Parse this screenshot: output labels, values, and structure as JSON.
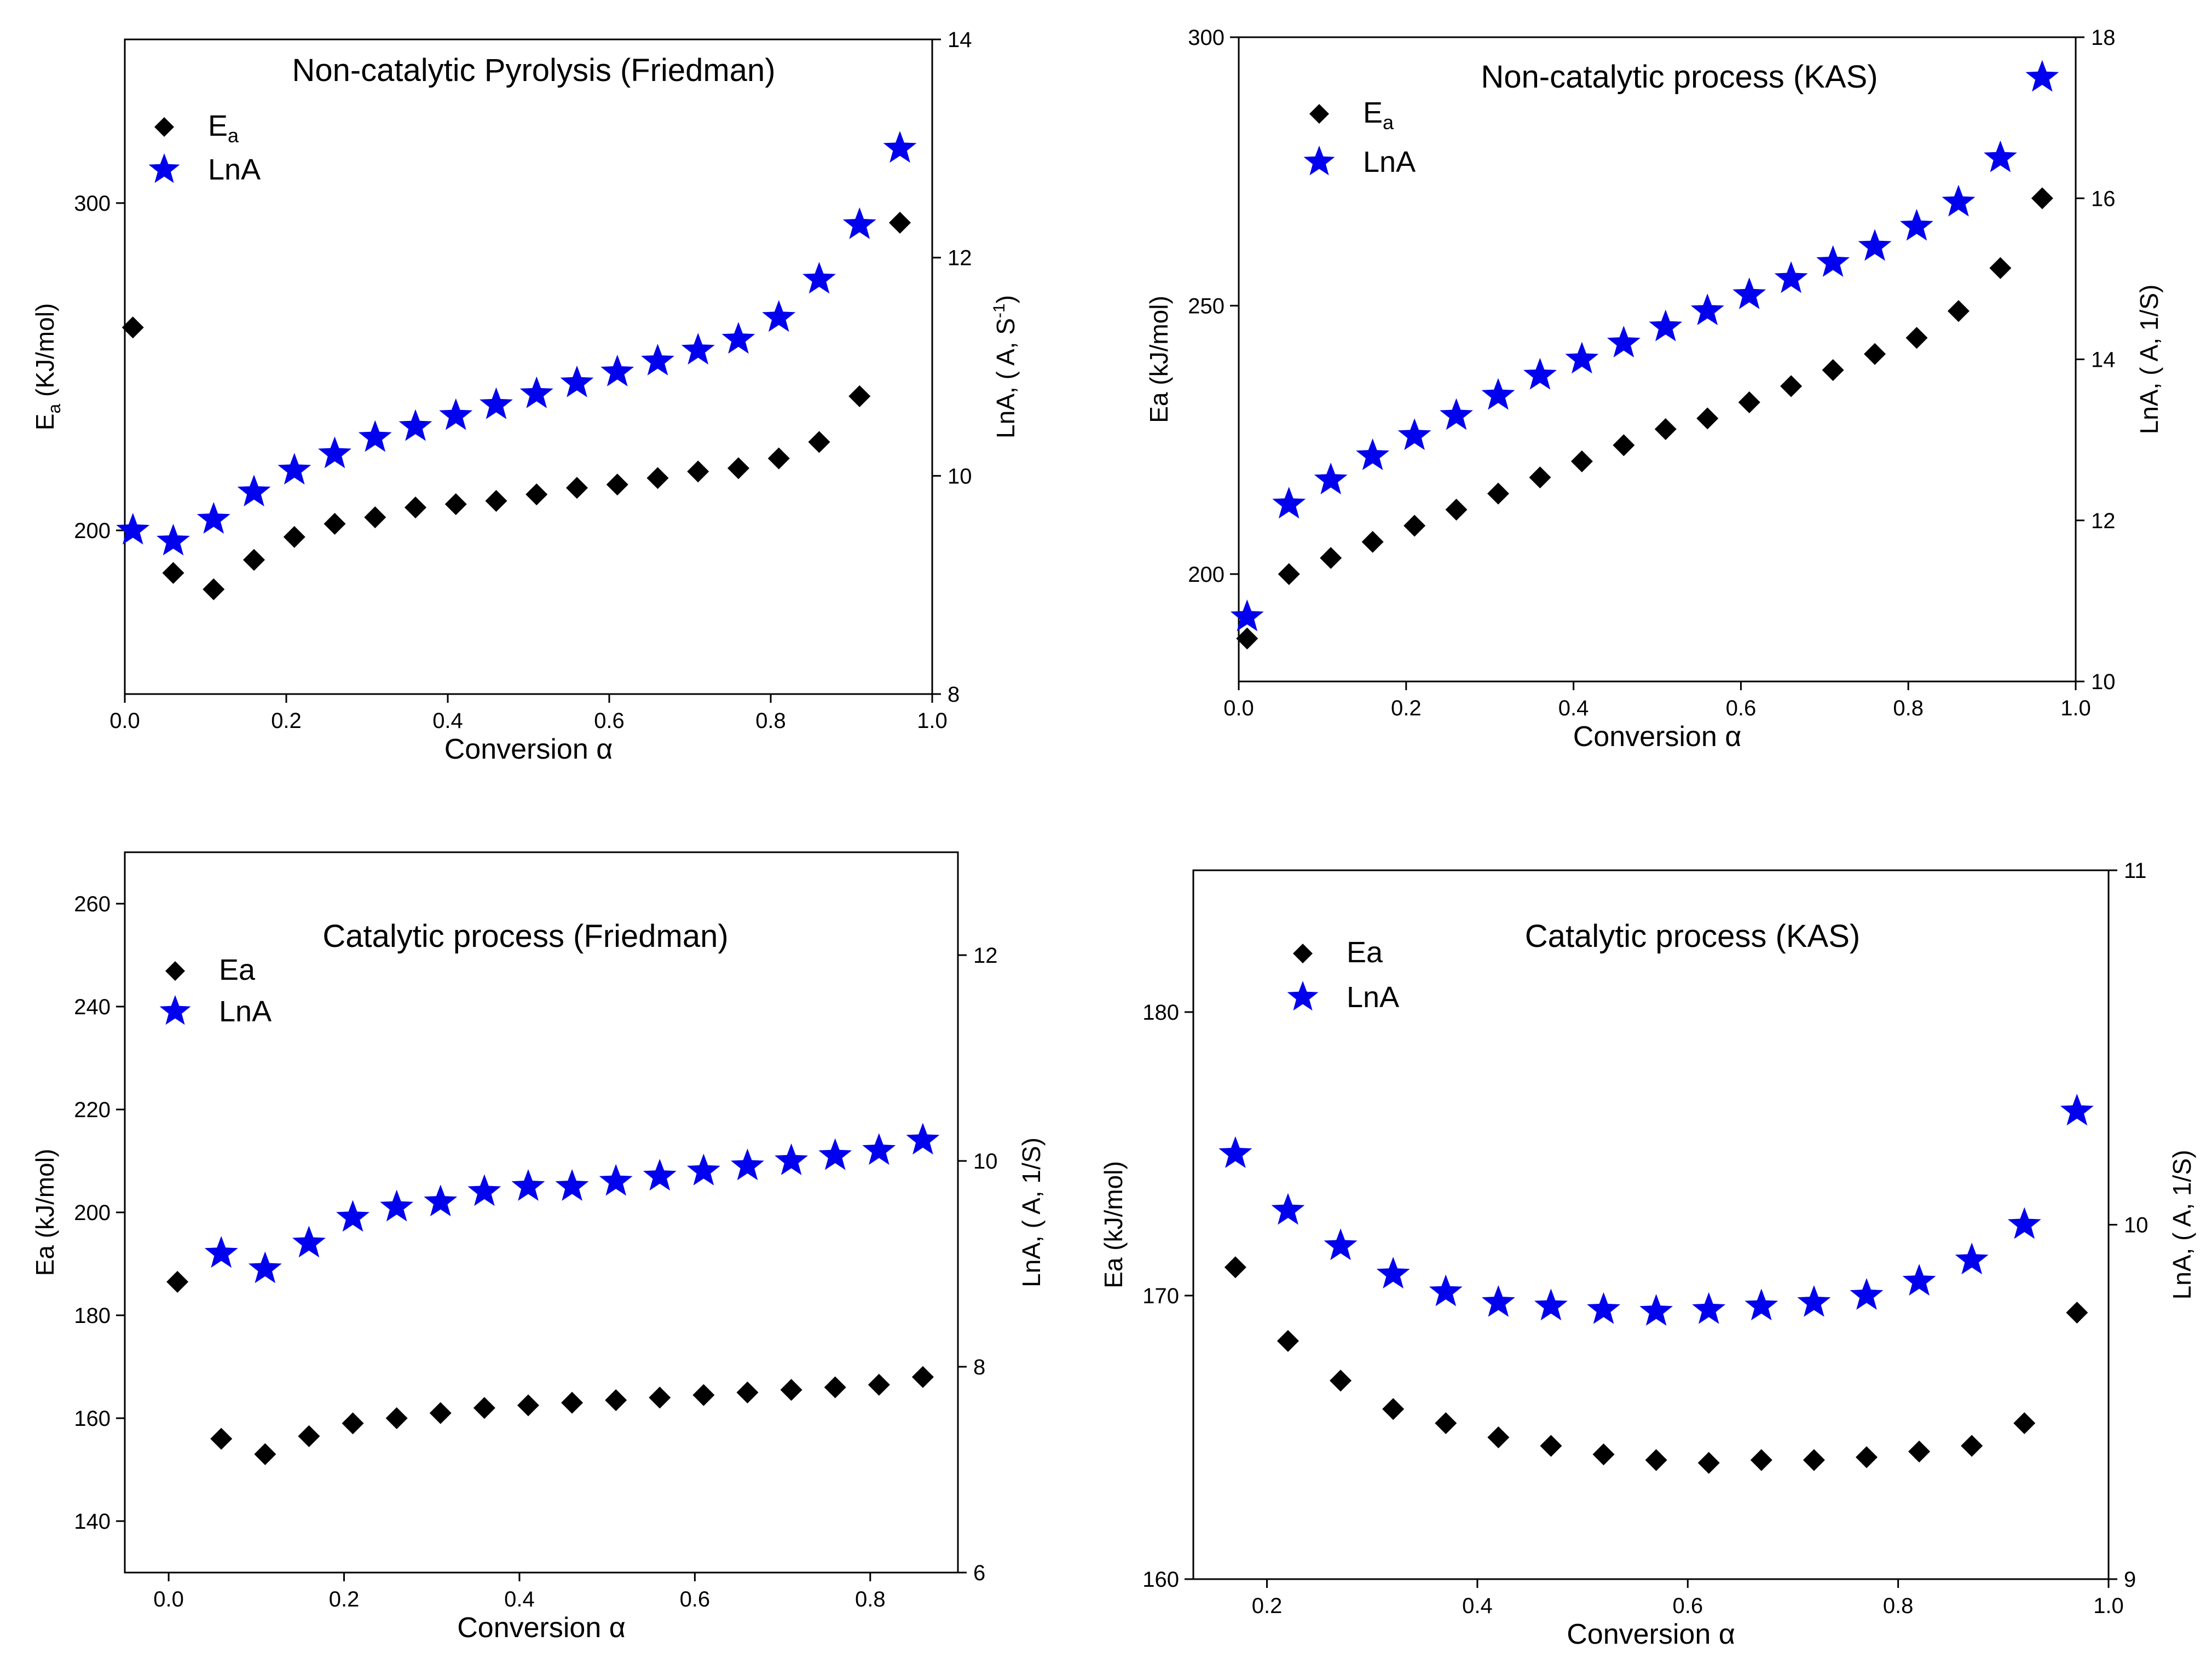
{
  "colors": {
    "ea": "#000000",
    "lna": "#0000ee",
    "axis": "#000000"
  },
  "chart_data": [
    {
      "type": "scatter",
      "title": "Non-catalytic Pyrolysis (Friedman)",
      "xlabel": "Conversion α",
      "ylabel_main": "E",
      "ylabel_sub": "a",
      "ylabel_tail": " (KJ/mol)",
      "y2label": "LnA, ( A, S",
      "y2label_sup": "-1",
      "y2label_tail": ")",
      "legend": {
        "ea_main": "E",
        "ea_sub": "a",
        "lna": "LnA"
      },
      "xlim": [
        0.0,
        1.0
      ],
      "ylim": [
        150,
        350
      ],
      "y2lim": [
        8,
        14
      ],
      "xticks": [
        "0.0",
        "0.2",
        "0.4",
        "0.6",
        "0.8",
        "1.0"
      ],
      "yticks": [
        "200",
        "300"
      ],
      "y2ticks": [
        "8",
        "10",
        "12",
        "14"
      ],
      "x": [
        0.01,
        0.06,
        0.11,
        0.16,
        0.21,
        0.26,
        0.31,
        0.36,
        0.41,
        0.46,
        0.51,
        0.56,
        0.61,
        0.66,
        0.71,
        0.76,
        0.81,
        0.86,
        0.91,
        0.96
      ],
      "ea": [
        262,
        187,
        182,
        191,
        198,
        202,
        204,
        207,
        208,
        209,
        211,
        213,
        214,
        216,
        218,
        219,
        222,
        227,
        241,
        294
      ],
      "lna": [
        9.5,
        9.4,
        9.6,
        9.85,
        10.05,
        10.2,
        10.35,
        10.45,
        10.55,
        10.65,
        10.75,
        10.85,
        10.95,
        11.05,
        11.15,
        11.25,
        11.45,
        11.8,
        12.3,
        13.0
      ]
    },
    {
      "type": "scatter",
      "title": "Non-catalytic process (KAS)",
      "xlabel": "Conversion α",
      "ylabel_main": "Ea (kJ/mol)",
      "ylabel_sub": "",
      "ylabel_tail": "",
      "y2label": "LnA, ( A, 1/S)",
      "y2label_sup": "",
      "y2label_tail": "",
      "legend": {
        "ea_main": "E",
        "ea_sub": "a",
        "lna": "LnA"
      },
      "xlim": [
        0.0,
        1.0
      ],
      "ylim": [
        180,
        300
      ],
      "y2lim": [
        10,
        18
      ],
      "xticks": [
        "0.0",
        "0.2",
        "0.4",
        "0.6",
        "0.8",
        "1.0"
      ],
      "yticks": [
        "200",
        "250",
        "300"
      ],
      "y2ticks": [
        "10",
        "12",
        "14",
        "16",
        "18"
      ],
      "x": [
        0.01,
        0.06,
        0.11,
        0.16,
        0.21,
        0.26,
        0.31,
        0.36,
        0.41,
        0.46,
        0.51,
        0.56,
        0.61,
        0.66,
        0.71,
        0.76,
        0.81,
        0.86,
        0.91,
        0.96
      ],
      "ea": [
        188,
        200,
        203,
        206,
        209,
        212,
        215,
        218,
        221,
        224,
        227,
        229,
        232,
        235,
        238,
        241,
        244,
        249,
        257,
        270
      ],
      "lna": [
        10.8,
        12.2,
        12.5,
        12.8,
        13.05,
        13.3,
        13.55,
        13.8,
        14.0,
        14.2,
        14.4,
        14.6,
        14.8,
        15.0,
        15.2,
        15.4,
        15.65,
        15.95,
        16.5,
        17.5
      ]
    },
    {
      "type": "scatter",
      "title": "Catalytic process (Friedman)",
      "xlabel": "Conversion α",
      "ylabel_main": "Ea (kJ/mol)",
      "ylabel_sub": "",
      "ylabel_tail": "",
      "y2label": "LnA, ( A, 1/S)",
      "y2label_sup": "",
      "y2label_tail": "",
      "legend": {
        "ea_main": "Ea",
        "ea_sub": "",
        "lna": "LnA"
      },
      "xlim": [
        -0.05,
        0.9
      ],
      "ylim": [
        130,
        270
      ],
      "y2lim": [
        6,
        13
      ],
      "xticks": [
        "0.0",
        "0.2",
        "0.4",
        "0.6",
        "0.8"
      ],
      "yticks": [
        "140",
        "160",
        "180",
        "200",
        "220",
        "240",
        "260"
      ],
      "y2ticks": [
        "6",
        "8",
        "10",
        "12"
      ],
      "x": [
        0.01,
        0.06,
        0.11,
        0.16,
        0.21,
        0.26,
        0.31,
        0.36,
        0.41,
        0.46,
        0.51,
        0.56,
        0.61,
        0.66,
        0.71,
        0.76,
        0.81,
        0.86
      ],
      "ea": [
        186.5,
        156,
        153,
        156.5,
        159,
        160,
        161,
        162,
        162.5,
        163,
        163.5,
        164,
        164.5,
        165,
        165.5,
        166,
        166.5,
        168
      ],
      "lna": [
        null,
        9.1,
        8.95,
        9.2,
        9.45,
        9.55,
        9.6,
        9.7,
        9.75,
        9.75,
        9.8,
        9.85,
        9.9,
        9.95,
        10.0,
        10.05,
        10.1,
        10.2
      ]
    },
    {
      "type": "scatter",
      "title": "Catalytic process (KAS)",
      "xlabel": "Conversion α",
      "ylabel_main": "Ea (kJ/mol)",
      "ylabel_sub": "",
      "ylabel_tail": "",
      "y2label": "LnA, ( A, 1/S)",
      "y2label_sup": "",
      "y2label_tail": "",
      "legend": {
        "ea_main": "Ea",
        "ea_sub": "",
        "lna": "LnA"
      },
      "xlim": [
        0.13,
        1.0
      ],
      "ylim": [
        160,
        185
      ],
      "y2lim": [
        9,
        11
      ],
      "xticks": [
        "0.2",
        "0.4",
        "0.6",
        "0.8",
        "1.0"
      ],
      "yticks": [
        "160",
        "170",
        "180"
      ],
      "y2ticks": [
        "9",
        "10",
        "11"
      ],
      "x": [
        0.17,
        0.22,
        0.27,
        0.32,
        0.37,
        0.42,
        0.47,
        0.52,
        0.57,
        0.62,
        0.67,
        0.72,
        0.77,
        0.82,
        0.87,
        0.92,
        0.97
      ],
      "ea": [
        171,
        168.4,
        167,
        166,
        165.5,
        165,
        164.7,
        164.4,
        164.2,
        164.1,
        164.2,
        164.2,
        164.3,
        164.5,
        164.7,
        165.5,
        169.4
      ],
      "lna": [
        10.2,
        10.04,
        9.94,
        9.86,
        9.81,
        9.78,
        9.77,
        9.76,
        9.755,
        9.76,
        9.77,
        9.78,
        9.8,
        9.84,
        9.9,
        10.0,
        10.32
      ]
    }
  ]
}
